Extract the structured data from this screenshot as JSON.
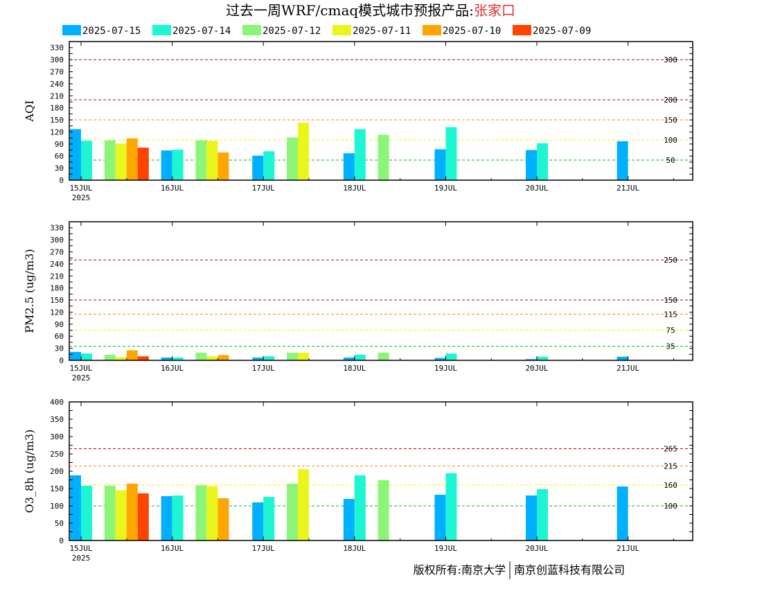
{
  "title": {
    "prefix": "过去一周WRF/cmaq模式城市预报产品:",
    "city": "张家口",
    "city_color": "#e03030"
  },
  "legend": [
    {
      "label": "2025-07-15",
      "color": "#00b0ff"
    },
    {
      "label": "2025-07-14",
      "color": "#1ef5d2"
    },
    {
      "label": "2025-07-12",
      "color": "#8cf578"
    },
    {
      "label": "2025-07-11",
      "color": "#eaf51e"
    },
    {
      "label": "2025-07-10",
      "color": "#ffa500"
    },
    {
      "label": "2025-07-09",
      "color": "#ff4400"
    }
  ],
  "footer": {
    "left": "版权所有:南京大学",
    "right": "南京创蓝科技有限公司"
  },
  "chart_data": [
    {
      "type": "bar",
      "ylabel": "AQI",
      "ylim": [
        0,
        345
      ],
      "yticks": [
        "0",
        "30",
        "60",
        "90",
        "120",
        "150",
        "180",
        "210",
        "240",
        "270",
        "300",
        "330"
      ],
      "yticks_minor_step": 15,
      "xticks": [
        "15JUL",
        "16JUL",
        "17JUL",
        "18JUL",
        "19JUL",
        "20JUL",
        "21JUL"
      ],
      "x_year_label": "2025",
      "thresholds": [
        {
          "value": 300,
          "label": "300",
          "color": "#a00050"
        },
        {
          "value": 200,
          "label": "200",
          "color": "#cc0000"
        },
        {
          "value": 150,
          "label": "150",
          "color": "#ff8800"
        },
        {
          "value": 100,
          "label": "100",
          "color": "#ffee00"
        },
        {
          "value": 50,
          "label": "50",
          "color": "#00bb00"
        }
      ],
      "bars": [
        {
          "pos": 0.0,
          "series": 0,
          "value": 127
        },
        {
          "pos": 0.0,
          "series": 1,
          "value": 98
        },
        {
          "pos": 0.5,
          "series": 2,
          "value": 99
        },
        {
          "pos": 0.5,
          "series": 3,
          "value": 91
        },
        {
          "pos": 0.5,
          "series": 4,
          "value": 104
        },
        {
          "pos": 0.5,
          "series": 5,
          "value": 81
        },
        {
          "pos": 1.0,
          "series": 0,
          "value": 74
        },
        {
          "pos": 1.0,
          "series": 1,
          "value": 76
        },
        {
          "pos": 1.5,
          "series": 2,
          "value": 99
        },
        {
          "pos": 1.5,
          "series": 3,
          "value": 98
        },
        {
          "pos": 1.5,
          "series": 4,
          "value": 69
        },
        {
          "pos": 2.0,
          "series": 0,
          "value": 61
        },
        {
          "pos": 2.0,
          "series": 1,
          "value": 72
        },
        {
          "pos": 2.5,
          "series": 2,
          "value": 106
        },
        {
          "pos": 2.5,
          "series": 3,
          "value": 143
        },
        {
          "pos": 3.0,
          "series": 0,
          "value": 67
        },
        {
          "pos": 3.0,
          "series": 1,
          "value": 127
        },
        {
          "pos": 3.5,
          "series": 2,
          "value": 113
        },
        {
          "pos": 4.0,
          "series": 0,
          "value": 77
        },
        {
          "pos": 4.0,
          "series": 1,
          "value": 132
        },
        {
          "pos": 5.0,
          "series": 0,
          "value": 75
        },
        {
          "pos": 5.0,
          "series": 1,
          "value": 92
        },
        {
          "pos": 6.0,
          "series": 0,
          "value": 97
        }
      ]
    },
    {
      "type": "bar",
      "ylabel": "PM2.5 (ug/m3)",
      "ylim": [
        0,
        345
      ],
      "yticks": [
        "0",
        "30",
        "60",
        "90",
        "120",
        "150",
        "180",
        "210",
        "240",
        "270",
        "300",
        "330"
      ],
      "yticks_minor_step": 15,
      "xticks": [
        "15JUL",
        "16JUL",
        "17JUL",
        "18JUL",
        "19JUL",
        "20JUL",
        "21JUL"
      ],
      "x_year_label": "2025",
      "thresholds": [
        {
          "value": 250,
          "label": "250",
          "color": "#a00050"
        },
        {
          "value": 150,
          "label": "150",
          "color": "#cc0000"
        },
        {
          "value": 115,
          "label": "115",
          "color": "#ff8800"
        },
        {
          "value": 75,
          "label": "75",
          "color": "#ffee00"
        },
        {
          "value": 35,
          "label": "35",
          "color": "#00bb00"
        }
      ],
      "bars": [
        {
          "pos": 0.0,
          "series": 0,
          "value": 21
        },
        {
          "pos": 0.0,
          "series": 1,
          "value": 17
        },
        {
          "pos": 0.5,
          "series": 2,
          "value": 14
        },
        {
          "pos": 0.5,
          "series": 3,
          "value": 8
        },
        {
          "pos": 0.5,
          "series": 4,
          "value": 25
        },
        {
          "pos": 0.5,
          "series": 5,
          "value": 10
        },
        {
          "pos": 1.0,
          "series": 0,
          "value": 7
        },
        {
          "pos": 1.0,
          "series": 1,
          "value": 7
        },
        {
          "pos": 1.5,
          "series": 2,
          "value": 19
        },
        {
          "pos": 1.5,
          "series": 3,
          "value": 10
        },
        {
          "pos": 1.5,
          "series": 4,
          "value": 13
        },
        {
          "pos": 2.0,
          "series": 0,
          "value": 7
        },
        {
          "pos": 2.0,
          "series": 1,
          "value": 10
        },
        {
          "pos": 2.5,
          "series": 2,
          "value": 19
        },
        {
          "pos": 2.5,
          "series": 3,
          "value": 19
        },
        {
          "pos": 3.0,
          "series": 0,
          "value": 7
        },
        {
          "pos": 3.0,
          "series": 1,
          "value": 14
        },
        {
          "pos": 3.5,
          "series": 2,
          "value": 19
        },
        {
          "pos": 4.0,
          "series": 0,
          "value": 6
        },
        {
          "pos": 4.0,
          "series": 1,
          "value": 17
        },
        {
          "pos": 5.0,
          "series": 0,
          "value": 3
        },
        {
          "pos": 5.0,
          "series": 1,
          "value": 9
        },
        {
          "pos": 6.0,
          "series": 0,
          "value": 9
        }
      ]
    },
    {
      "type": "bar",
      "ylabel": "O3_8h (ug/m3)",
      "ylim": [
        0,
        400
      ],
      "yticks": [
        "0",
        "50",
        "100",
        "150",
        "200",
        "250",
        "300",
        "350",
        "400"
      ],
      "yticks_minor_step": 25,
      "xticks": [
        "15JUL",
        "16JUL",
        "17JUL",
        "18JUL",
        "19JUL",
        "20JUL",
        "21JUL"
      ],
      "x_year_label": "2025",
      "thresholds": [
        {
          "value": 265,
          "label": "265",
          "color": "#cc0000"
        },
        {
          "value": 215,
          "label": "215",
          "color": "#ff8800"
        },
        {
          "value": 160,
          "label": "160",
          "color": "#ffee00"
        },
        {
          "value": 100,
          "label": "100",
          "color": "#00bb00"
        }
      ],
      "bars": [
        {
          "pos": 0.0,
          "series": 0,
          "value": 188
        },
        {
          "pos": 0.0,
          "series": 1,
          "value": 158
        },
        {
          "pos": 0.5,
          "series": 2,
          "value": 158
        },
        {
          "pos": 0.5,
          "series": 3,
          "value": 145
        },
        {
          "pos": 0.5,
          "series": 4,
          "value": 164
        },
        {
          "pos": 0.5,
          "series": 5,
          "value": 136
        },
        {
          "pos": 1.0,
          "series": 0,
          "value": 128
        },
        {
          "pos": 1.0,
          "series": 1,
          "value": 130
        },
        {
          "pos": 1.5,
          "series": 2,
          "value": 159
        },
        {
          "pos": 1.5,
          "series": 3,
          "value": 157
        },
        {
          "pos": 1.5,
          "series": 4,
          "value": 122
        },
        {
          "pos": 2.0,
          "series": 0,
          "value": 110
        },
        {
          "pos": 2.0,
          "series": 1,
          "value": 126
        },
        {
          "pos": 2.5,
          "series": 2,
          "value": 164
        },
        {
          "pos": 2.5,
          "series": 3,
          "value": 206
        },
        {
          "pos": 3.0,
          "series": 0,
          "value": 120
        },
        {
          "pos": 3.0,
          "series": 1,
          "value": 188
        },
        {
          "pos": 3.5,
          "series": 2,
          "value": 174
        },
        {
          "pos": 4.0,
          "series": 0,
          "value": 132
        },
        {
          "pos": 4.0,
          "series": 1,
          "value": 194
        },
        {
          "pos": 5.0,
          "series": 0,
          "value": 130
        },
        {
          "pos": 5.0,
          "series": 1,
          "value": 148
        },
        {
          "pos": 6.0,
          "series": 0,
          "value": 156
        }
      ]
    }
  ]
}
